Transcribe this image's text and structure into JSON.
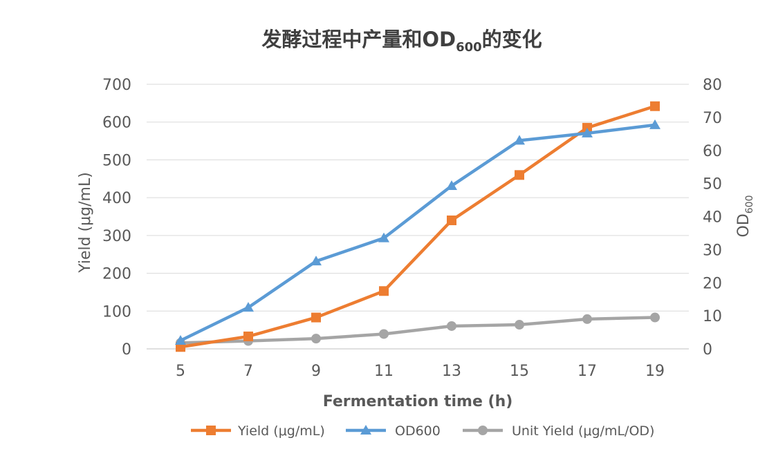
{
  "chart_data": {
    "type": "line",
    "title": {
      "main": "发酵过程中产量和OD",
      "subscript": "600",
      "suffix": "的变化"
    },
    "xlabel": "Fermentation time (h)",
    "ylabel_left": "Yield (μg/mL)",
    "ylabel_right": {
      "main": "OD",
      "subscript": "600"
    },
    "x": [
      5,
      7,
      9,
      11,
      13,
      15,
      17,
      19
    ],
    "ylim_left": [
      0,
      700
    ],
    "yticks_left": [
      0,
      100,
      200,
      300,
      400,
      500,
      600,
      700
    ],
    "ylim_right": [
      0,
      80
    ],
    "yticks_right": [
      0,
      10,
      20,
      30,
      40,
      50,
      60,
      70,
      80
    ],
    "grid": true,
    "legend_position": "bottom",
    "series": [
      {
        "name": "Yield (μg/mL)",
        "axis": "left",
        "color": "#ED7D31",
        "marker": "square",
        "values": [
          5,
          33,
          83,
          153,
          340,
          460,
          585,
          642
        ]
      },
      {
        "name": "OD600",
        "axis": "right",
        "color": "#5B9BD5",
        "marker": "triangle",
        "values": [
          2.5,
          12.5,
          26.5,
          33.5,
          49.3,
          63.0,
          65.2,
          67.7
        ]
      },
      {
        "name": "Unit Yield (μg/mL/OD)",
        "axis": "right",
        "color": "#A5A5A5",
        "marker": "circle",
        "values": [
          1.8,
          2.4,
          3.1,
          4.5,
          6.9,
          7.3,
          9.0,
          9.5
        ]
      }
    ]
  }
}
